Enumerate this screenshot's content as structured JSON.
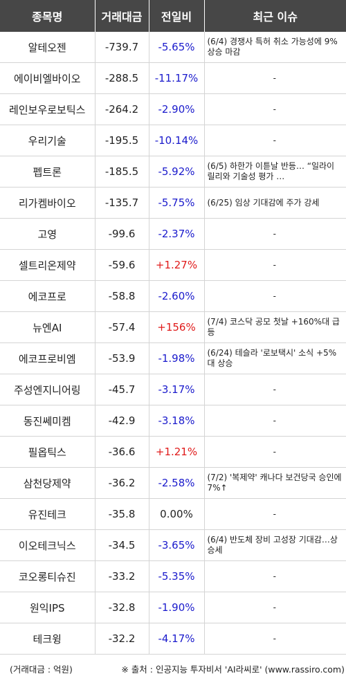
{
  "header": {
    "col_name": "종목명",
    "col_volume": "거래대금",
    "col_change": "전일비",
    "col_issue": "최근 이슈"
  },
  "rows": [
    {
      "name": "알테오젠",
      "volume": "-739.7",
      "change": "-5.65%",
      "dir": "neg",
      "issue": "(6/4) 경쟁사 특허 취소 가능성에 9% 상승 마감"
    },
    {
      "name": "에이비엘바이오",
      "volume": "-288.5",
      "change": "-11.17%",
      "dir": "neg",
      "issue": "-"
    },
    {
      "name": "레인보우로보틱스",
      "volume": "-264.2",
      "change": "-2.90%",
      "dir": "neg",
      "issue": "-"
    },
    {
      "name": "우리기술",
      "volume": "-195.5",
      "change": "-10.14%",
      "dir": "neg",
      "issue": "-"
    },
    {
      "name": "펩트론",
      "volume": "-185.5",
      "change": "-5.92%",
      "dir": "neg",
      "issue": "(6/5) 하한가 이튿날 반등… “일라이 릴리와 기술성 평가 …"
    },
    {
      "name": "리가켐바이오",
      "volume": "-135.7",
      "change": "-5.75%",
      "dir": "neg",
      "issue": "(6/25) 임상 기대감에 주가 강세"
    },
    {
      "name": "고영",
      "volume": "-99.6",
      "change": "-2.37%",
      "dir": "neg",
      "issue": "-"
    },
    {
      "name": "셀트리온제약",
      "volume": "-59.6",
      "change": "+1.27%",
      "dir": "pos",
      "issue": "-"
    },
    {
      "name": "에코프로",
      "volume": "-58.8",
      "change": "-2.60%",
      "dir": "neg",
      "issue": "-"
    },
    {
      "name": "뉴엔AI",
      "volume": "-57.4",
      "change": "+156%",
      "dir": "pos",
      "issue": "(7/4) 코스닥 공모 첫날 +160%대 급등"
    },
    {
      "name": "에코프로비엠",
      "volume": "-53.9",
      "change": "-1.98%",
      "dir": "neg",
      "issue": "(6/24) 테슬라 '로보택시' 소식 +5%대 상승"
    },
    {
      "name": "주성엔지니어링",
      "volume": "-45.7",
      "change": "-3.17%",
      "dir": "neg",
      "issue": "-"
    },
    {
      "name": "동진쎄미켐",
      "volume": "-42.9",
      "change": "-3.18%",
      "dir": "neg",
      "issue": "-"
    },
    {
      "name": "필옵틱스",
      "volume": "-36.6",
      "change": "+1.21%",
      "dir": "pos",
      "issue": "-"
    },
    {
      "name": "삼천당제약",
      "volume": "-36.2",
      "change": "-2.58%",
      "dir": "neg",
      "issue": "(7/2) '복제약' 캐나다 보건당국 승인에 7%↑"
    },
    {
      "name": "유진테크",
      "volume": "-35.8",
      "change": "0.00%",
      "dir": "zero",
      "issue": "-"
    },
    {
      "name": "이오테크닉스",
      "volume": "-34.5",
      "change": "-3.65%",
      "dir": "neg",
      "issue": "(6/4) 반도체 장비 고성장 기대감…상승세"
    },
    {
      "name": "코오롱티슈진",
      "volume": "-33.2",
      "change": "-5.35%",
      "dir": "neg",
      "issue": "-"
    },
    {
      "name": "원익IPS",
      "volume": "-32.8",
      "change": "-1.90%",
      "dir": "neg",
      "issue": "-"
    },
    {
      "name": "테크윙",
      "volume": "-32.2",
      "change": "-4.17%",
      "dir": "neg",
      "issue": "-"
    }
  ],
  "footer": {
    "unit_note": "(거래대금 : 억원)",
    "source_note": "※ 출처 : 인공지능 투자비서 'AI라씨로' (www.rassiro.com)"
  },
  "colors": {
    "header_bg": "#474747",
    "negative": "#1a1acc",
    "positive": "#e01a1a"
  }
}
